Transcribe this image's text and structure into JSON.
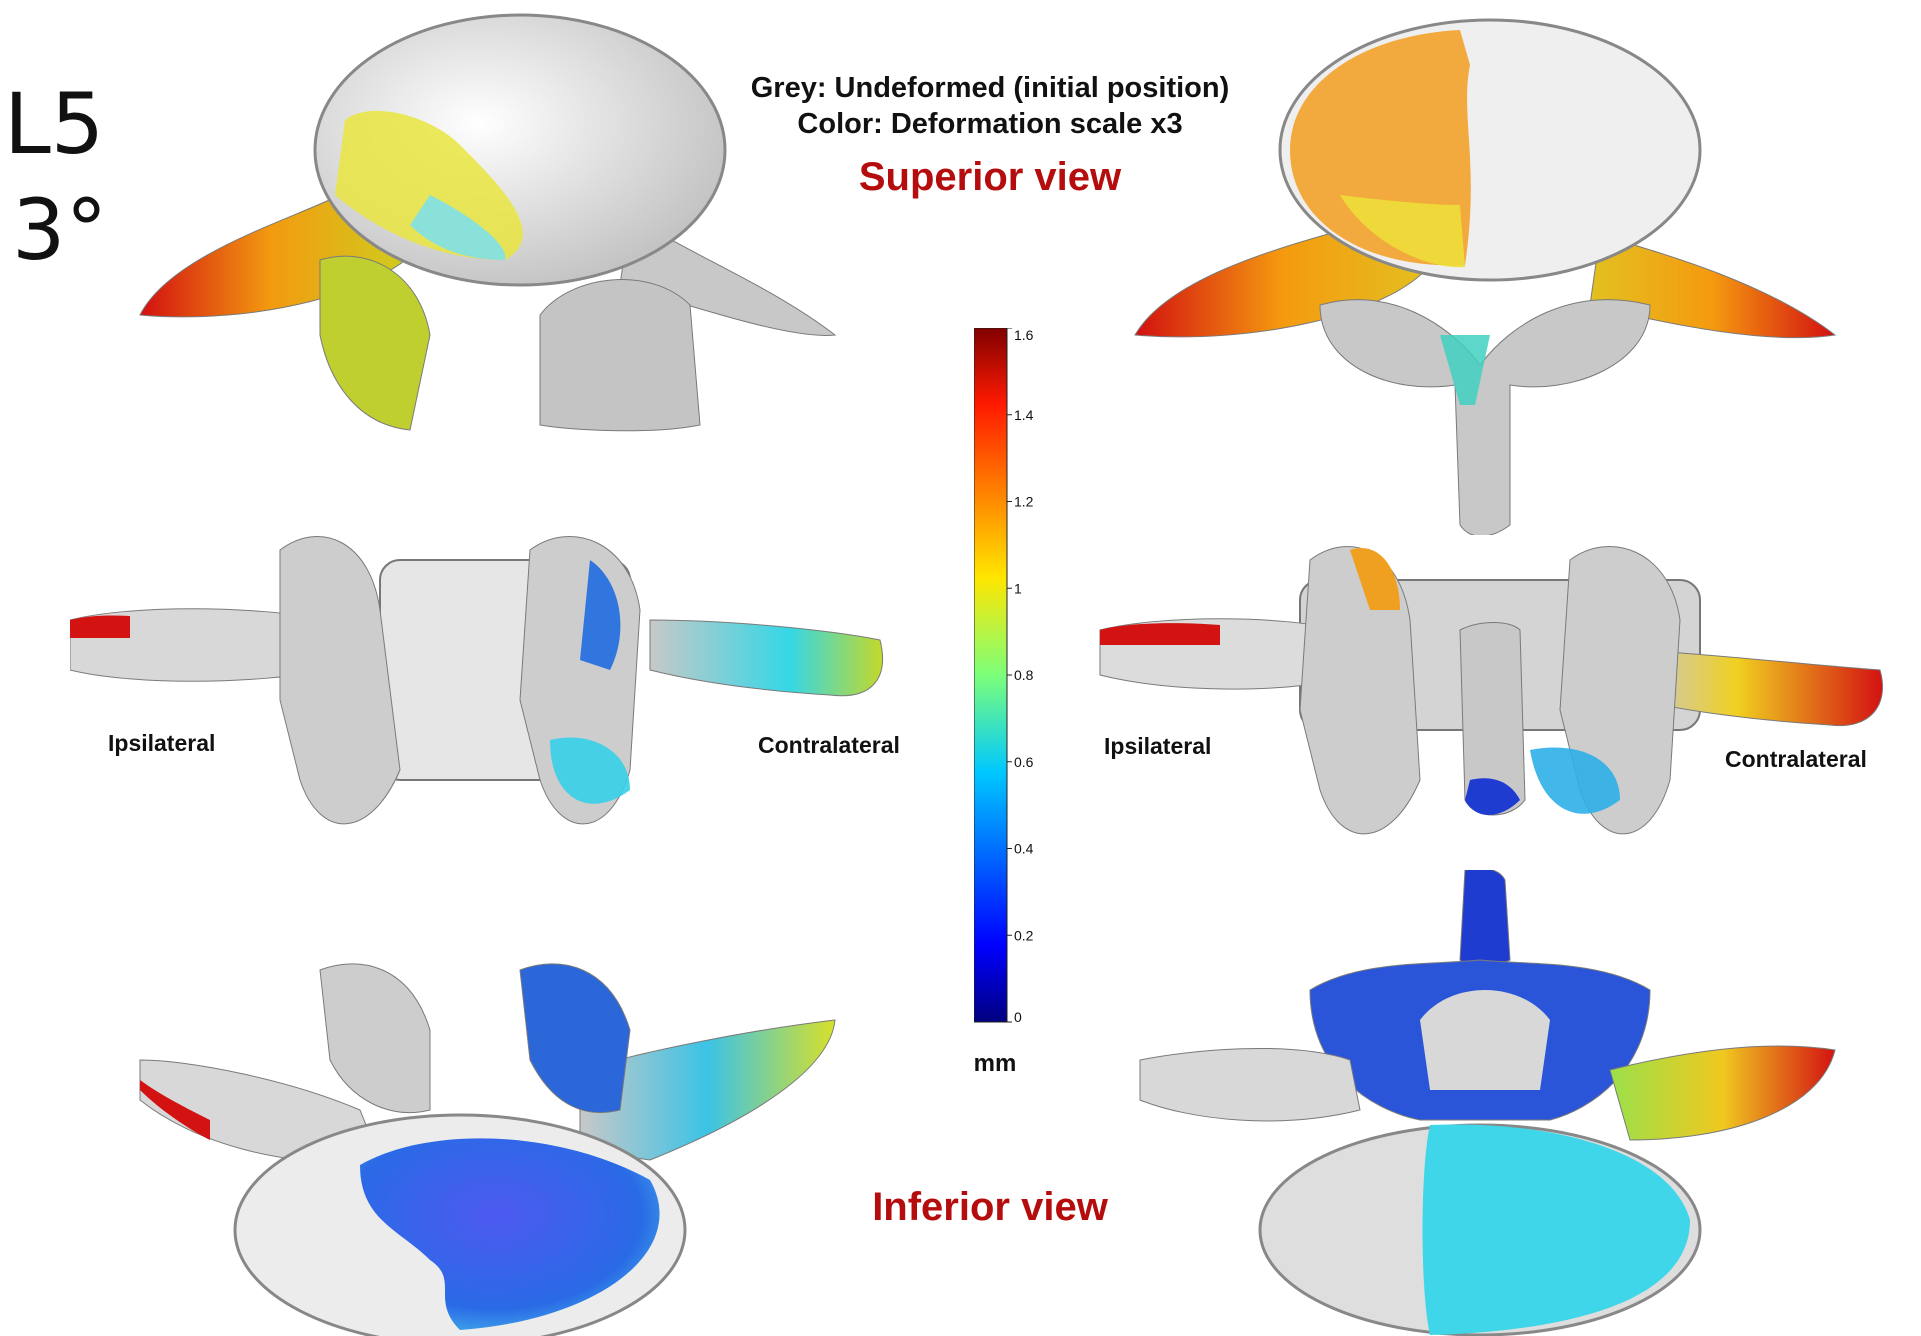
{
  "level": "L5",
  "angle": "3°",
  "header": {
    "grey_label": "Grey: Undeformed (initial position)",
    "color_label": "Color: Deformation scale x3"
  },
  "views": {
    "superior": "Superior view",
    "inferior": "Inferior view"
  },
  "sides": {
    "left_ipsi": "Ipsilateral",
    "left_contra": "Contralateral",
    "right_ipsi": "Ipsilateral",
    "right_contra": "Contralateral"
  },
  "colorbar": {
    "unit": "mm",
    "min": 0,
    "max": 1.6,
    "ticks": [
      "1.6",
      "1.4",
      "1.2",
      "1",
      "0.8",
      "0.6",
      "0.4",
      "0.2",
      "0"
    ],
    "colormap": "jet"
  },
  "colors": {
    "view_title": "#b50d0d",
    "bone_grey": "#c8c8c8"
  }
}
